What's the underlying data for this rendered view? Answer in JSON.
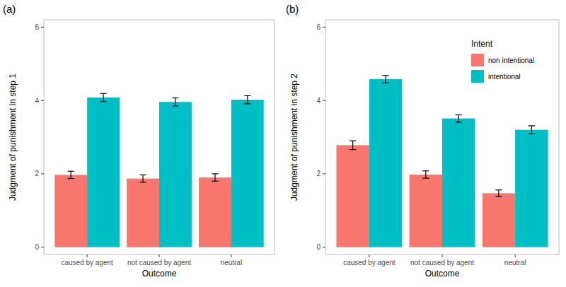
{
  "chart_data": [
    {
      "type": "bar",
      "title": "(a)",
      "x_label": "Outcome",
      "y_label": "Judgment of punishment in step 1",
      "categories": [
        "caused by agent",
        "not caused by agent",
        "neutral"
      ],
      "series": [
        {
          "name": "non intentional",
          "color": "#F8766D",
          "values": [
            1.97,
            1.87,
            1.9
          ],
          "errors": [
            0.1,
            0.1,
            0.1
          ]
        },
        {
          "name": "intentional",
          "color": "#00BFC4",
          "values": [
            4.08,
            3.96,
            4.02
          ],
          "errors": [
            0.11,
            0.11,
            0.11
          ]
        }
      ],
      "ylim": [
        -0.2,
        6.2
      ],
      "yticks": [
        0,
        2,
        4,
        6
      ],
      "grid": false
    },
    {
      "type": "bar",
      "title": "(b)",
      "x_label": "Outcome",
      "y_label": "Judgment of punishment in step 2",
      "categories": [
        "caused by agent",
        "not caused by agent",
        "neutral"
      ],
      "series": [
        {
          "name": "non intentional",
          "color": "#F8766D",
          "values": [
            2.78,
            1.98,
            1.47
          ],
          "errors": [
            0.12,
            0.1,
            0.09
          ]
        },
        {
          "name": "intentional",
          "color": "#00BFC4",
          "values": [
            4.58,
            3.51,
            3.2
          ],
          "errors": [
            0.1,
            0.1,
            0.11
          ]
        }
      ],
      "ylim": [
        -0.2,
        6.2
      ],
      "yticks": [
        0,
        2,
        4,
        6
      ],
      "grid": false,
      "legend": "top-right",
      "legend_title": "Intent"
    }
  ]
}
